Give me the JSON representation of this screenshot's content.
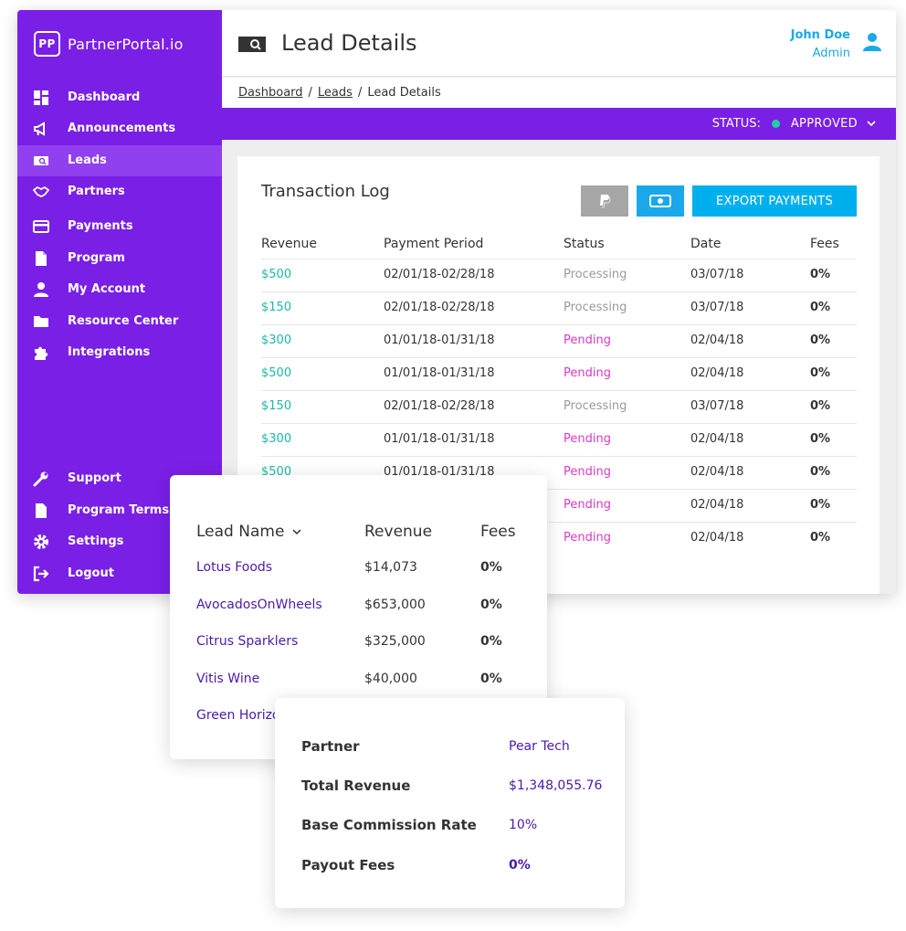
{
  "brand": {
    "mark": "PP",
    "name": "PartnerPortal.io"
  },
  "sidebar": {
    "items": [
      {
        "label": "Dashboard",
        "icon": "dashboard-icon"
      },
      {
        "label": "Announcements",
        "icon": "megaphone-icon"
      },
      {
        "label": "Leads",
        "icon": "leads-icon",
        "active": true
      },
      {
        "label": "Partners",
        "icon": "handshake-icon"
      },
      {
        "label": "Payments",
        "icon": "credit-card-icon"
      },
      {
        "label": "Program",
        "icon": "document-icon"
      },
      {
        "label": "My Account",
        "icon": "user-icon"
      },
      {
        "label": "Resource Center",
        "icon": "folder-icon"
      },
      {
        "label": "Integrations",
        "icon": "puzzle-icon"
      }
    ],
    "bottom_items": [
      {
        "label": "Support",
        "icon": "wrench-icon"
      },
      {
        "label": "Program Terms",
        "icon": "file-icon"
      },
      {
        "label": "Settings",
        "icon": "gear-icon"
      },
      {
        "label": "Logout",
        "icon": "logout-icon"
      }
    ]
  },
  "header": {
    "title": "Lead Details",
    "user_name": "John Doe",
    "user_role": "Admin"
  },
  "breadcrumb": {
    "items": [
      "Dashboard",
      "Leads",
      "Lead Details"
    ],
    "separator": "/"
  },
  "status": {
    "label": "STATUS:",
    "value": "APPROVED",
    "color": "#1dd1a1"
  },
  "transaction_log": {
    "title": "Transaction Log",
    "export_label": "EXPORT PAYMENTS",
    "columns": [
      "Revenue",
      "Payment Period",
      "Status",
      "Date",
      "Fees"
    ],
    "rows": [
      {
        "revenue": "$500",
        "period": "02/01/18-02/28/18",
        "status": "Processing",
        "date": "03/07/18",
        "fees": "0%"
      },
      {
        "revenue": "$150",
        "period": "02/01/18-02/28/18",
        "status": "Processing",
        "date": "03/07/18",
        "fees": "0%"
      },
      {
        "revenue": "$300",
        "period": "01/01/18-01/31/18",
        "status": "Pending",
        "date": "02/04/18",
        "fees": "0%"
      },
      {
        "revenue": "$500",
        "period": "01/01/18-01/31/18",
        "status": "Pending",
        "date": "02/04/18",
        "fees": "0%"
      },
      {
        "revenue": "$150",
        "period": "02/01/18-02/28/18",
        "status": "Processing",
        "date": "03/07/18",
        "fees": "0%"
      },
      {
        "revenue": "$300",
        "period": "01/01/18-01/31/18",
        "status": "Pending",
        "date": "02/04/18",
        "fees": "0%"
      },
      {
        "revenue": "$500",
        "period": "01/01/18-01/31/18",
        "status": "Pending",
        "date": "02/04/18",
        "fees": "0%"
      },
      {
        "revenue": "",
        "period": "",
        "status": "Pending",
        "date": "02/04/18",
        "fees": "0%"
      },
      {
        "revenue": "",
        "period": "",
        "status": "Pending",
        "date": "02/04/18",
        "fees": "0%"
      }
    ]
  },
  "leads": {
    "columns": {
      "name": "Lead Name",
      "revenue": "Revenue",
      "fees": "Fees"
    },
    "rows": [
      {
        "name": "Lotus Foods",
        "revenue": "$14,073",
        "fees": "0%"
      },
      {
        "name": "AvocadosOnWheels",
        "revenue": "$653,000",
        "fees": "0%"
      },
      {
        "name": "Citrus Sparklers",
        "revenue": "$325,000",
        "fees": "0%"
      },
      {
        "name": "Vitis Wine",
        "revenue": "$40,000",
        "fees": "0%"
      },
      {
        "name": "Green Horizo",
        "revenue": "",
        "fees": ""
      }
    ]
  },
  "partner_summary": {
    "rows": [
      {
        "label": "Partner",
        "value": "Pear Tech"
      },
      {
        "label": "Total Revenue",
        "value": "$1,348,055.76"
      },
      {
        "label": "Base Commission Rate",
        "value": "10%"
      },
      {
        "label": "Payout Fees",
        "value": "0%"
      }
    ]
  },
  "colors": {
    "brand_purple": "#7a1fe6",
    "accent_blue": "#1aa8ea",
    "revenue_teal": "#1cb9a6",
    "pending_pink": "#d63cc4",
    "processing_gray": "#9a9a9a",
    "lead_link": "#4b1aa8"
  }
}
